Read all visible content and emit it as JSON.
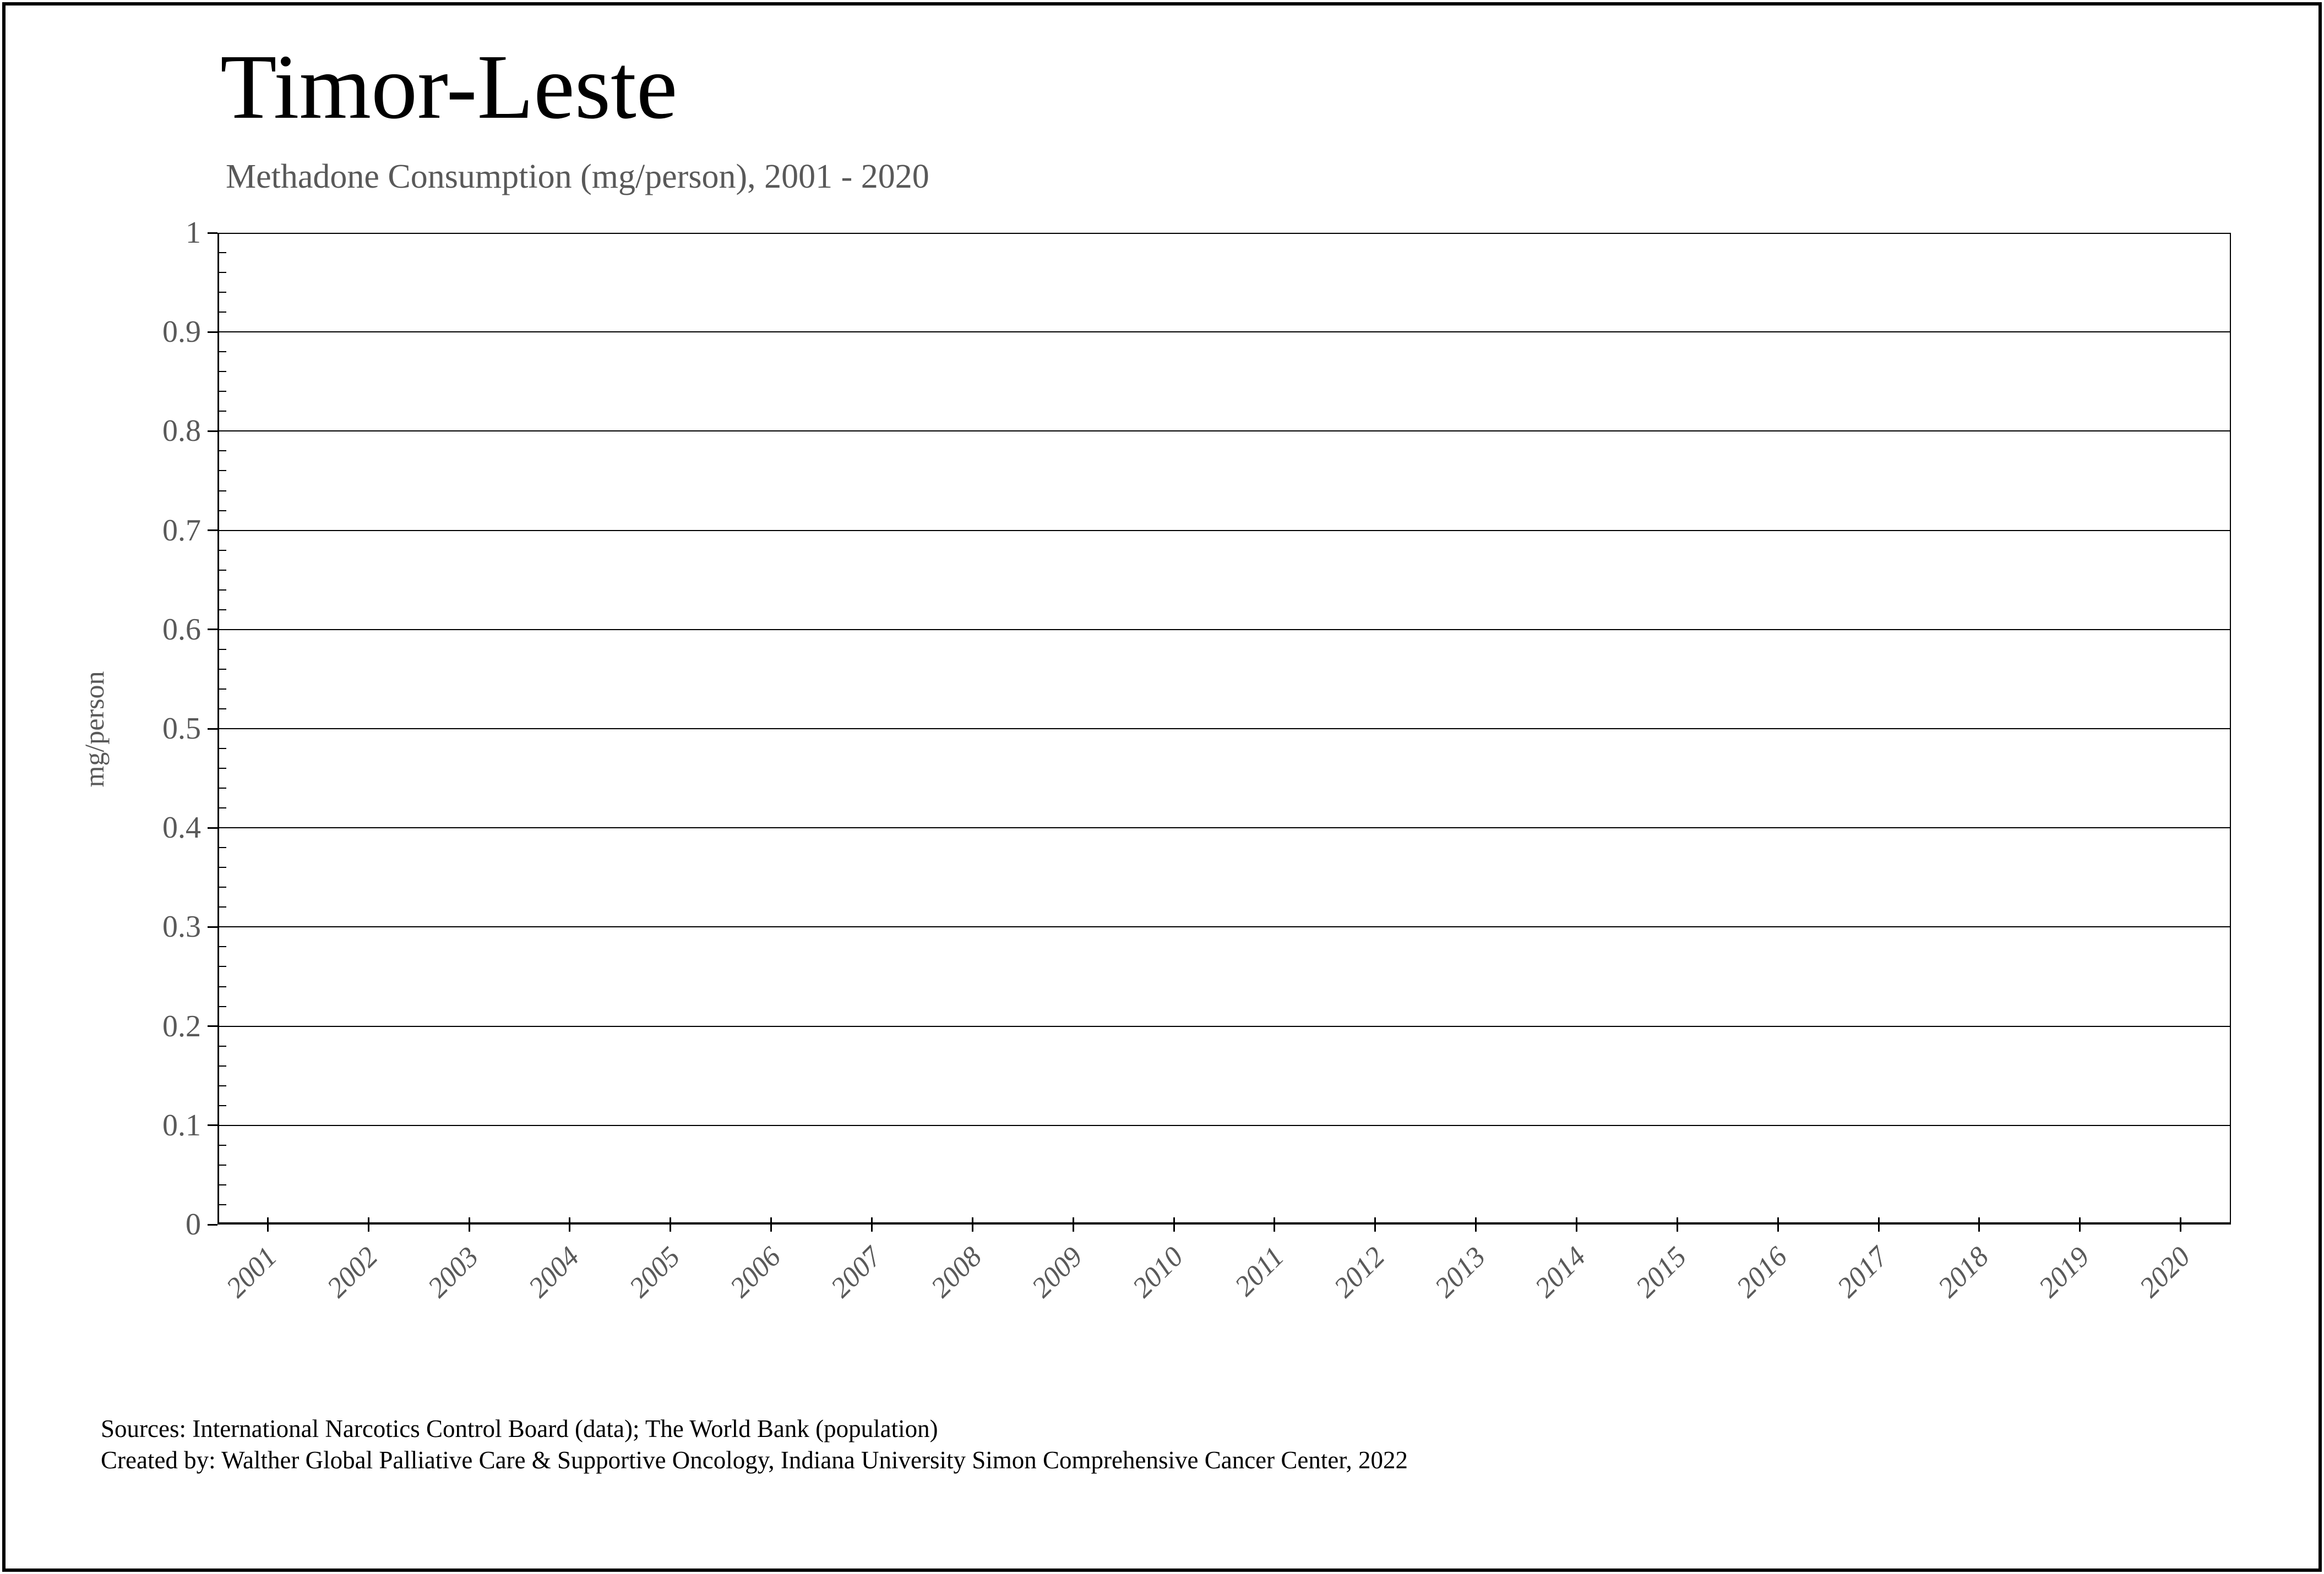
{
  "title": "Timor-Leste",
  "subtitle": "Methadone Consumption (mg/person), 2001 - 2020",
  "footer": {
    "sources": "Sources: International Narcotics Control Board (data); The World Bank (population)",
    "created_by": "Created by: Walther Global Palliative Care & Supportive Oncology, Indiana University Simon Comprehensive Cancer Center, 2022"
  },
  "colors": {
    "text_primary": "#000000",
    "text_muted": "#595959",
    "axis": "#000000",
    "gridline": "#000000",
    "background": "#ffffff"
  },
  "chart_data": {
    "type": "line",
    "title": "Timor-Leste",
    "subtitle": "Methadone Consumption (mg/person), 2001 - 2020",
    "categories": [
      "2001",
      "2002",
      "2003",
      "2004",
      "2005",
      "2006",
      "2007",
      "2008",
      "2009",
      "2010",
      "2011",
      "2012",
      "2013",
      "2014",
      "2015",
      "2016",
      "2017",
      "2018",
      "2019",
      "2020"
    ],
    "series": [
      {
        "name": "Methadone consumption (mg/person)",
        "values": [
          0,
          0,
          0,
          0,
          0,
          0,
          0,
          0,
          0,
          0,
          0,
          0,
          0,
          0,
          0,
          0,
          0,
          0,
          0,
          0
        ]
      }
    ],
    "rendered_line_visible": false,
    "xlabel": "",
    "ylabel": "mg/person",
    "ylim": [
      0,
      1
    ],
    "y_ticks": [
      "0",
      "0.1",
      "0.2",
      "0.3",
      "0.4",
      "0.5",
      "0.6",
      "0.7",
      "0.8",
      "0.9",
      "1"
    ],
    "y_minor_tick_step": 0.02,
    "x_tick_style": "ticks at category centers, labels rotated 45 degrees",
    "grid": true,
    "legend": false
  }
}
